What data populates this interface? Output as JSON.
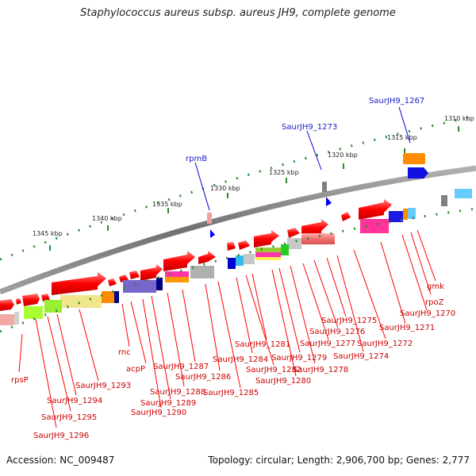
{
  "title": "Staphylococcus aureus subsp. aureus JH9, complete genome",
  "footer": {
    "accession": "Accession: NC_009487",
    "stats": "Topology: circular; Length: 2,906,700 bp; Genes: 2,777"
  },
  "colors": {
    "backbone": "#808080",
    "tick_dot": "#2e8b2e",
    "forward_gene": "#ff0000",
    "gene_label": "#cc0000",
    "feature_label": "#1a1acc"
  },
  "ruler_labels": [
    {
      "id": "1310",
      "text": "1310 kbp"
    },
    {
      "id": "1315",
      "text": "1315 kbp"
    },
    {
      "id": "1320",
      "text": "1320 kbp"
    },
    {
      "id": "1325",
      "text": "1325 kbp"
    },
    {
      "id": "1330",
      "text": "1330 kbp"
    },
    {
      "id": "1335",
      "text": "1335 kbp"
    },
    {
      "id": "1340",
      "text": "1340 kbp"
    },
    {
      "id": "1345",
      "text": "1345 kbp"
    }
  ],
  "feature_labels": [
    {
      "id": "saurjh9_1267",
      "text": "SaurJH9_1267"
    },
    {
      "id": "saurjh9_1273",
      "text": "SaurJH9_1273"
    },
    {
      "id": "rpmb",
      "text": "rpmB"
    }
  ],
  "gene_labels": [
    {
      "id": "gmk",
      "text": "gmk"
    },
    {
      "id": "rpoz",
      "text": "rpoZ"
    },
    {
      "id": "1270",
      "text": "SaurJH9_1270"
    },
    {
      "id": "1271",
      "text": "SaurJH9_1271"
    },
    {
      "id": "1272",
      "text": "SaurJH9_1272"
    },
    {
      "id": "1274",
      "text": "SaurJH9_1274"
    },
    {
      "id": "1275",
      "text": "SaurJH9_1275"
    },
    {
      "id": "1276",
      "text": "SaurJH9_1276"
    },
    {
      "id": "1277",
      "text": "SaurJH9_1277"
    },
    {
      "id": "1278",
      "text": "SaurJH9_1278"
    },
    {
      "id": "1279",
      "text": "SaurJH9_1279"
    },
    {
      "id": "1280",
      "text": "SaurJH9_1280"
    },
    {
      "id": "1281",
      "text": "SaurJH9_1281"
    },
    {
      "id": "1282",
      "text": "SaurJH9_1282"
    },
    {
      "id": "1284",
      "text": "SaurJH9_1284"
    },
    {
      "id": "1285",
      "text": "SaurJH9_1285"
    },
    {
      "id": "1286",
      "text": "SaurJH9_1286"
    },
    {
      "id": "1287",
      "text": "SaurJH9_1287"
    },
    {
      "id": "1288",
      "text": "SaurJH9_1288"
    },
    {
      "id": "1289",
      "text": "SaurJH9_1289"
    },
    {
      "id": "1290",
      "text": "SaurJH9_1290"
    },
    {
      "id": "rnc",
      "text": "rnc"
    },
    {
      "id": "acpp",
      "text": "acpP"
    },
    {
      "id": "1293",
      "text": "SaurJH9_1293"
    },
    {
      "id": "1294",
      "text": "SaurJH9_1294"
    },
    {
      "id": "1295",
      "text": "SaurJH9_1295"
    },
    {
      "id": "1296",
      "text": "SaurJH9_1296"
    },
    {
      "id": "rpsp",
      "text": "rpsP"
    }
  ]
}
